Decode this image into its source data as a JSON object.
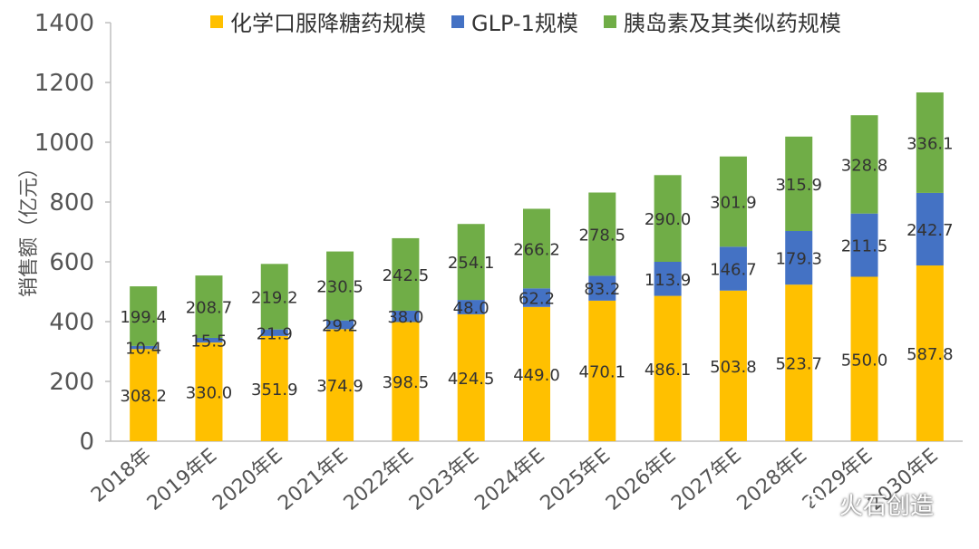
{
  "chart_data": {
    "type": "bar",
    "stacked": true,
    "categories": [
      "2018年",
      "2019年E",
      "2020年E",
      "2021年E",
      "2022年E",
      "2023年E",
      "2024年E",
      "2025年E",
      "2026年E",
      "2027年E",
      "2028年E",
      "2029年E",
      "2030年E"
    ],
    "series": [
      {
        "name": "化学口服降糖药规模",
        "color": "#FFC000",
        "values": [
          308.2,
          330.0,
          351.9,
          374.9,
          398.5,
          424.5,
          449.0,
          470.1,
          486.1,
          503.8,
          523.7,
          550.0,
          587.8
        ]
      },
      {
        "name": "GLP-1规模",
        "color": "#4472C4",
        "values": [
          10.4,
          15.5,
          21.9,
          29.2,
          38.0,
          48.0,
          62.2,
          83.2,
          113.9,
          146.7,
          179.3,
          211.5,
          242.7
        ]
      },
      {
        "name": "胰岛素及其类似药规模",
        "color": "#70AD47",
        "values": [
          199.4,
          208.7,
          219.2,
          230.5,
          242.5,
          254.1,
          266.2,
          278.5,
          290.0,
          301.9,
          315.9,
          328.8,
          336.1
        ]
      }
    ],
    "data_labels": {
      "化学口服降糖药规模": [
        "308.2",
        "330.0",
        "351.9",
        "374.9",
        "398.5",
        "424.5",
        "449.0",
        "470.1",
        "486.1",
        "503.8",
        "523.7",
        "550.0",
        "587.8"
      ],
      "GLP-1规模": [
        "10.4",
        "15.5",
        "21.9",
        "29.2",
        "38.0",
        "48.0",
        "62.2",
        "83.2",
        "113.9",
        "146.7",
        "179.3",
        "211.5",
        "242.7"
      ],
      "胰岛素及其类似药规模": [
        "199.4",
        "208.7",
        "219.2",
        "230.5",
        "242.5",
        "254.1",
        "266.2",
        "278.5",
        "290.0",
        "301.9",
        "315.9",
        "328.8",
        "336.1"
      ]
    },
    "title": "",
    "xlabel": "",
    "ylabel": "销售额（亿元）",
    "ylim": [
      0,
      1400
    ],
    "yticks": [
      0,
      200,
      400,
      600,
      800,
      1000,
      1200,
      1400
    ],
    "grid": false,
    "legend_position": "top"
  },
  "watermark": {
    "text": "火石创造",
    "icon": "wechat-icon"
  }
}
